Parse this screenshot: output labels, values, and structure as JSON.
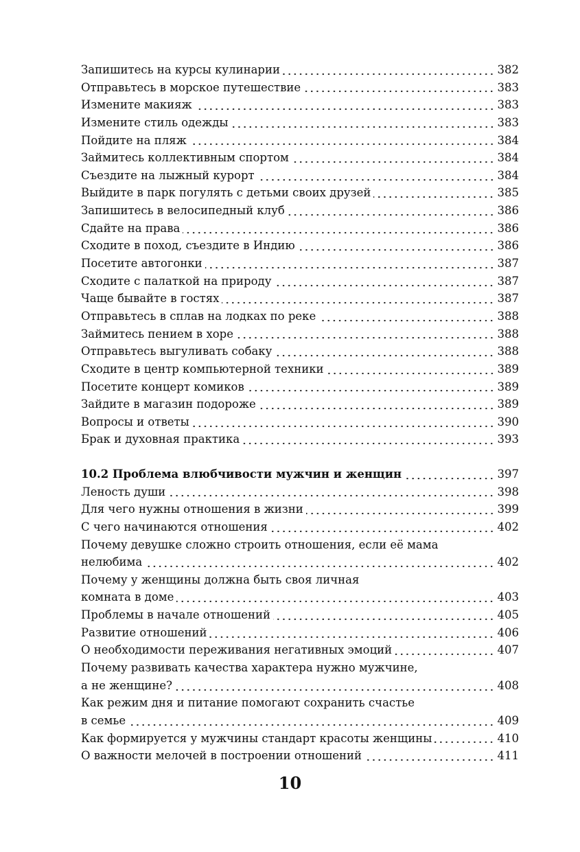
{
  "sections": [
    {
      "heading": null,
      "entries": [
        {
          "title": "Запишитесь на курсы кулинарии",
          "page": "382"
        },
        {
          "title": "Отправьтесь в морское путешествие",
          "page": "383"
        },
        {
          "title": "Измените макияж",
          "page": "383"
        },
        {
          "title": "Измените стиль одежды",
          "page": "383"
        },
        {
          "title": "Пойдите на пляж",
          "page": "384"
        },
        {
          "title": "Займитесь коллективным спортом",
          "page": "384"
        },
        {
          "title": "Съездите на лыжный курорт",
          "page": "384"
        },
        {
          "title": "Выйдите в парк погулять с детьми своих друзей",
          "page": "385"
        },
        {
          "title": "Запишитесь в велосипедный клуб",
          "page": "386"
        },
        {
          "title": "Сдайте на права",
          "page": "386"
        },
        {
          "title": "Сходите в поход, съездите в Индию",
          "page": "386"
        },
        {
          "title": "Посетите автогонки",
          "page": "387"
        },
        {
          "title": "Сходите с палаткой на природу",
          "page": "387"
        },
        {
          "title": "Чаще бывайте в гостях",
          "page": "387"
        },
        {
          "title": "Отправьтесь в сплав на лодках по реке",
          "page": "388"
        },
        {
          "title": "Займитесь пением в хоре",
          "page": "388"
        },
        {
          "title": "Отправьтесь выгуливать собаку",
          "page": "388"
        },
        {
          "title": "Сходите в центр компьютерной техники",
          "page": "389"
        },
        {
          "title": "Посетите концерт комиков",
          "page": "389"
        },
        {
          "title": "Зайдите в магазин подороже",
          "page": "389"
        },
        {
          "title": "Вопросы и ответы",
          "page": "390"
        },
        {
          "title": "Брак и духовная практика",
          "page": "393"
        }
      ]
    },
    {
      "heading": {
        "title": "10.2 Проблема влюбчивости мужчин и женщин",
        "page": "397"
      },
      "entries": [
        {
          "title": "Леность души",
          "page": "398"
        },
        {
          "title": "Для чего нужны отношения в жизни",
          "page": "399"
        },
        {
          "title": "С чего начинаются отношения",
          "page": "402"
        },
        {
          "title_line1": "Почему девушке сложно строить отношения, если её мама",
          "title": "нелюбима",
          "page": "402"
        },
        {
          "title_line1": "Почему у женщины должна быть своя личная",
          "title": "комната в доме",
          "page": "403"
        },
        {
          "title": "Проблемы в начале отношений",
          "page": "405"
        },
        {
          "title": "Развитие отношений",
          "page": "406"
        },
        {
          "title": "О необходимости переживания негативных эмоций",
          "page": "407"
        },
        {
          "title_line1": "Почему развивать качества характера нужно мужчине,",
          "title": "а не женщине?",
          "page": "408"
        },
        {
          "title_line1": "Как режим дня и питание помогают сохранить счастье",
          "title": "в семье",
          "page": "409"
        },
        {
          "title": "Как формируется у мужчины стандарт красоты женщины",
          "page": "410"
        },
        {
          "title": "О важности мелочей в построении отношений",
          "page": "411"
        }
      ]
    }
  ],
  "page_number": "10"
}
